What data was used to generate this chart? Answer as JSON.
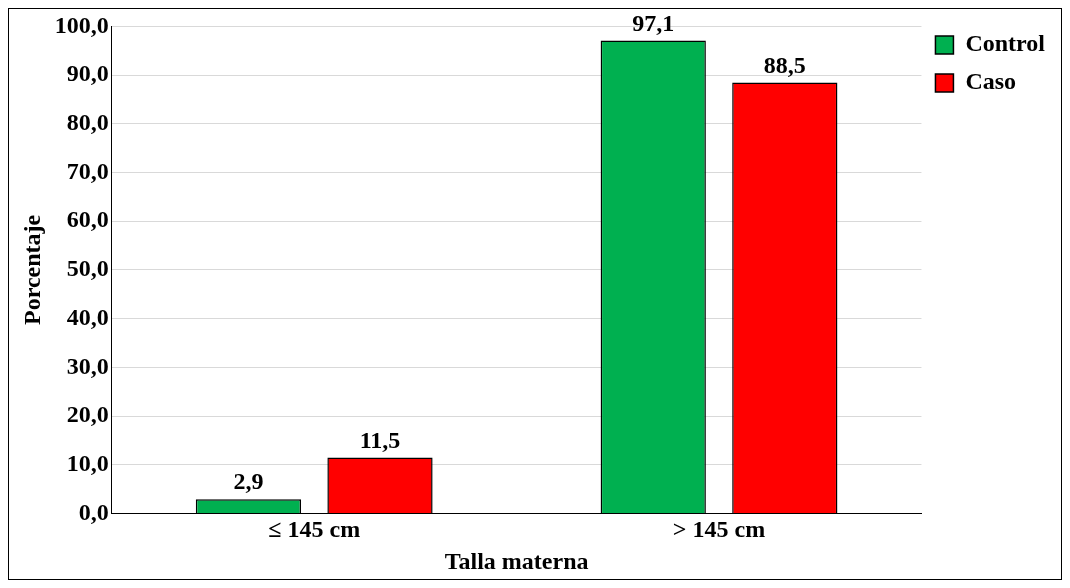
{
  "chart_data": {
    "type": "bar",
    "xlabel": "Talla materna",
    "ylabel": "Porcentaje",
    "categories": [
      "≤ 145 cm",
      "> 145 cm"
    ],
    "series": [
      {
        "name": "Control",
        "color": "#00b050",
        "values": [
          2.9,
          97.1
        ],
        "value_labels": [
          "2,9",
          "97,1"
        ]
      },
      {
        "name": "Caso",
        "color": "#ff0000",
        "values": [
          11.5,
          88.5
        ],
        "value_labels": [
          "11,5",
          "88,5"
        ]
      }
    ],
    "ylim": [
      0,
      100
    ],
    "yticks": [
      {
        "value": 0,
        "label": "0,0"
      },
      {
        "value": 10,
        "label": "10,0"
      },
      {
        "value": 20,
        "label": "20,0"
      },
      {
        "value": 30,
        "label": "30,0"
      },
      {
        "value": 40,
        "label": "40,0"
      },
      {
        "value": 50,
        "label": "50,0"
      },
      {
        "value": 60,
        "label": "60,0"
      },
      {
        "value": 70,
        "label": "70,0"
      },
      {
        "value": 80,
        "label": "80,0"
      },
      {
        "value": 90,
        "label": "90,0"
      },
      {
        "value": 100,
        "label": "100,0"
      }
    ],
    "grid": "y",
    "legend": "top right"
  }
}
